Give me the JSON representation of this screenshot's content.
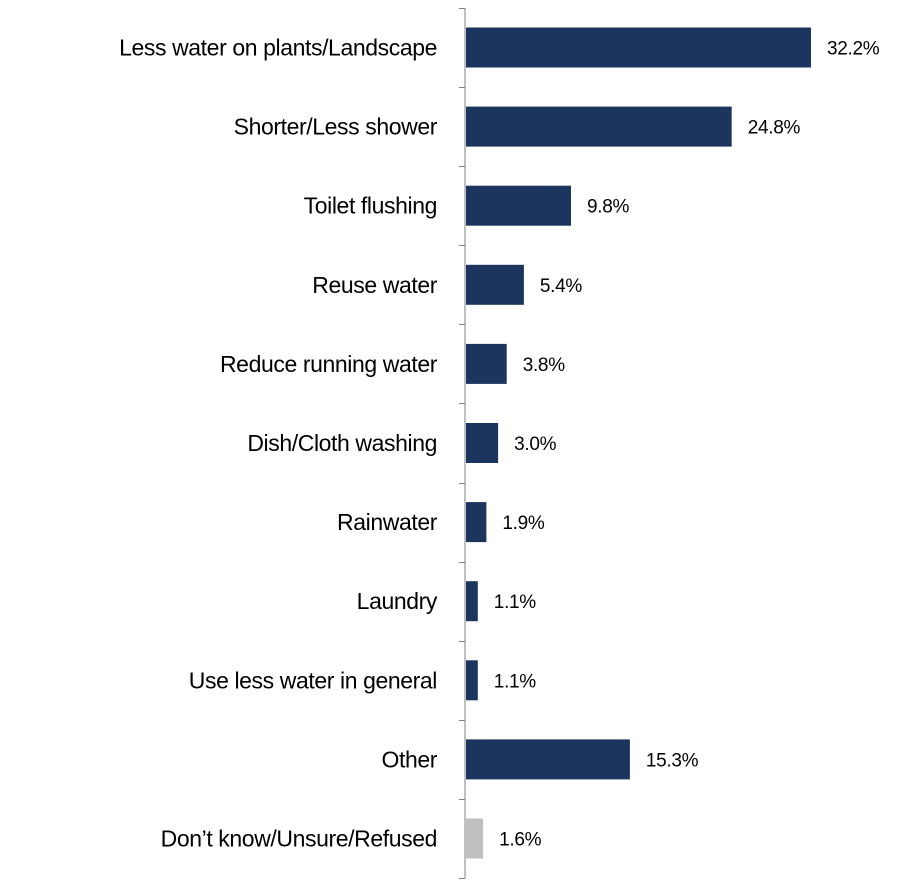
{
  "chart_data": {
    "type": "bar",
    "orientation": "horizontal",
    "categories": [
      "Less water on plants/Landscape",
      "Shorter/Less shower",
      "Toilet flushing",
      "Reuse water",
      "Reduce running water",
      "Dish/Cloth washing",
      "Rainwater",
      "Laundry",
      "Use less water in general",
      "Other",
      "Don’t know/Unsure/Refused"
    ],
    "values": [
      32.2,
      24.8,
      9.8,
      5.4,
      3.8,
      3.0,
      1.9,
      1.1,
      1.1,
      15.3,
      1.6
    ],
    "value_labels": [
      "32.2%",
      "24.8%",
      "9.8%",
      "5.4%",
      "3.8%",
      "3.0%",
      "1.9%",
      "1.1%",
      "1.1%",
      "15.3%",
      "1.6%"
    ],
    "colors": [
      "#1c355e",
      "#1c355e",
      "#1c355e",
      "#1c355e",
      "#1c355e",
      "#1c355e",
      "#1c355e",
      "#1c355e",
      "#1c355e",
      "#1c355e",
      "#c0c0c0"
    ],
    "xlim": [
      0,
      35
    ],
    "grid": false,
    "legend": "none"
  }
}
